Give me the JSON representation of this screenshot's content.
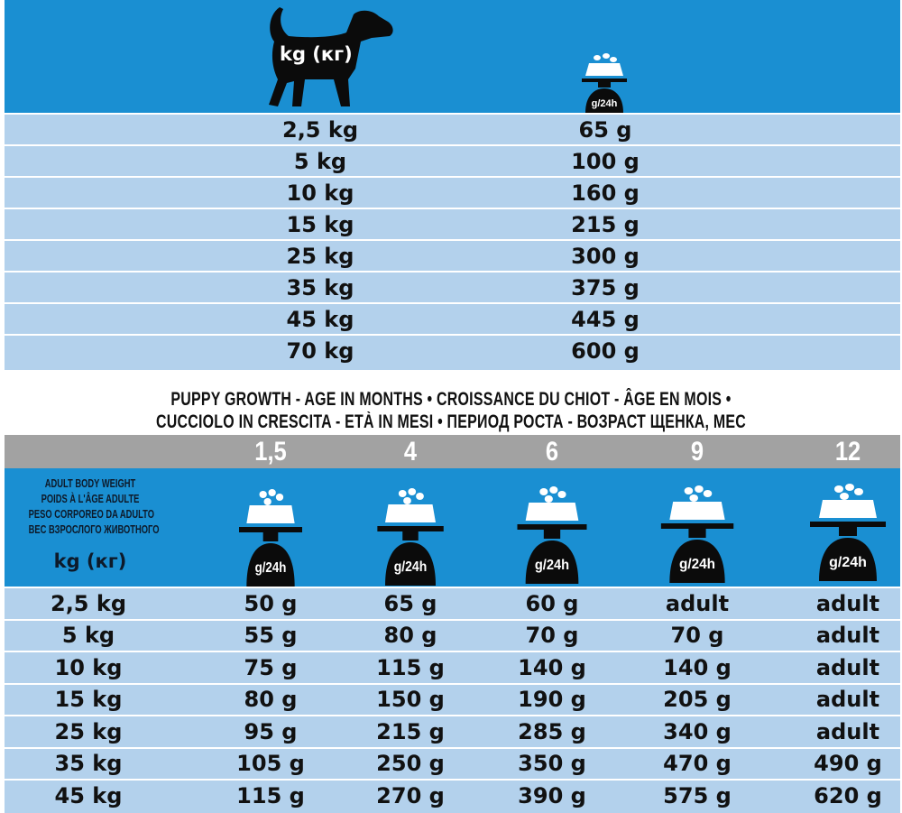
{
  "colors": {
    "header_blue": "#1a8fd2",
    "row_blue": "#b3d1ec",
    "age_gray": "#a2a2a2"
  },
  "adult_table": {
    "weight_header": "kg (кг)",
    "dog_icon": "dog-silhouette-icon",
    "ration_icon": "food-scale-icon",
    "ration_icon_label": "g/24h",
    "rows": [
      {
        "weight": "2,5 kg",
        "ration": "65 g"
      },
      {
        "weight": "5 kg",
        "ration": "100 g"
      },
      {
        "weight": "10 kg",
        "ration": "160 g"
      },
      {
        "weight": "15 kg",
        "ration": "215 g"
      },
      {
        "weight": "25 kg",
        "ration": "300 g"
      },
      {
        "weight": "35 kg",
        "ration": "375 g"
      },
      {
        "weight": "45 kg",
        "ration": "445 g"
      },
      {
        "weight": "70 kg",
        "ration": "600 g"
      }
    ]
  },
  "puppy_table": {
    "heading_line1": "PUPPY GROWTH - AGE IN MONTHS • CROISSANCE DU CHIOT - ÂGE EN MOIS •",
    "heading_line2": "CUCCIOLO IN CRESCITA - ETÀ IN MESI • ПЕРИОД РОСТА - ВОЗРАСТ ЩЕНКА, МЕС",
    "weight_label": [
      "ADULT BODY WEIGHT",
      "POIDS À L'ÂGE ADULTE",
      "PESO CORPOREO DA ADULTO",
      "ВЕС ВЗРОСЛОГО ЖИВОТНОГО"
    ],
    "weight_unit": "kg (кг)",
    "ages": [
      "1,5",
      "4",
      "6",
      "9",
      "12"
    ],
    "ration_icon_label": "g/24h",
    "rows": [
      {
        "weight": "2,5 kg",
        "values": [
          "50 g",
          "65 g",
          "60 g",
          "adult",
          "adult"
        ]
      },
      {
        "weight": "5 kg",
        "values": [
          "55 g",
          "80 g",
          "70 g",
          "70 g",
          "adult"
        ]
      },
      {
        "weight": "10 kg",
        "values": [
          "75 g",
          "115 g",
          "140 g",
          "140 g",
          "adult"
        ]
      },
      {
        "weight": "15 kg",
        "values": [
          "80 g",
          "150 g",
          "190 g",
          "205 g",
          "adult"
        ]
      },
      {
        "weight": "25 kg",
        "values": [
          "95 g",
          "215 g",
          "285 g",
          "340 g",
          "adult"
        ]
      },
      {
        "weight": "35 kg",
        "values": [
          "105 g",
          "250 g",
          "350 g",
          "470 g",
          "490 g"
        ]
      },
      {
        "weight": "45 kg",
        "values": [
          "115 g",
          "270 g",
          "390 g",
          "575 g",
          "620 g"
        ]
      }
    ]
  }
}
